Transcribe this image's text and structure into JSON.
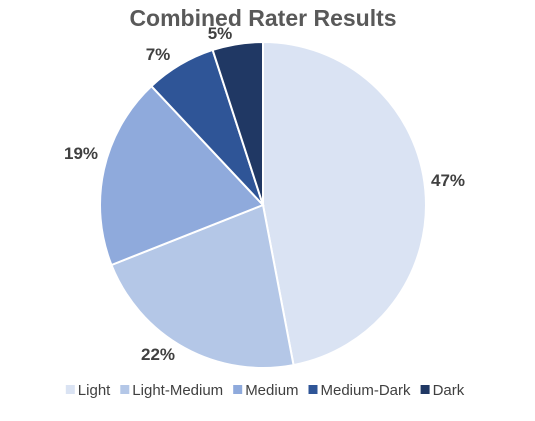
{
  "chart_data": {
    "type": "pie",
    "title": "Combined Rater Results",
    "categories": [
      "Light",
      "Light-Medium",
      "Medium",
      "Medium-Dark",
      "Dark"
    ],
    "values": [
      47,
      22,
      19,
      7,
      5
    ],
    "data_labels": [
      "47%",
      "22%",
      "19%",
      "7%",
      "5%"
    ],
    "colors": [
      "#dae3f3",
      "#b4c7e7",
      "#8faadc",
      "#2f5597",
      "#203864"
    ],
    "legend_position": "bottom"
  }
}
